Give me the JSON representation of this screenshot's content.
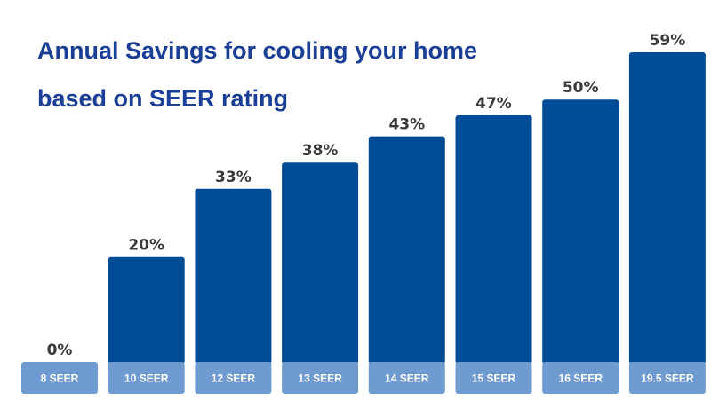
{
  "chart_data": {
    "type": "bar",
    "title_lines": [
      "Annual Savings for cooling your home",
      "based on SEER rating"
    ],
    "categories": [
      "8 SEER",
      "10 SEER",
      "12 SEER",
      "13 SEER",
      "14 SEER",
      "15 SEER",
      "16 SEER",
      "19.5 SEER"
    ],
    "values": [
      0,
      20,
      33,
      38,
      43,
      47,
      50,
      59
    ],
    "value_labels": [
      "0%",
      "20%",
      "33%",
      "38%",
      "43%",
      "47%",
      "50%",
      "59%"
    ],
    "value_unit": "%",
    "xlabel": "",
    "ylabel": "",
    "ylim": [
      0,
      59
    ],
    "grid": false,
    "legend": "none"
  },
  "colors": {
    "title": "#1b3f97",
    "bar": "#004c97",
    "category_tab": "#6f9bd1",
    "category_text": "#ffffff",
    "value_text": "#3a3a3a",
    "background": "#ffffff"
  }
}
